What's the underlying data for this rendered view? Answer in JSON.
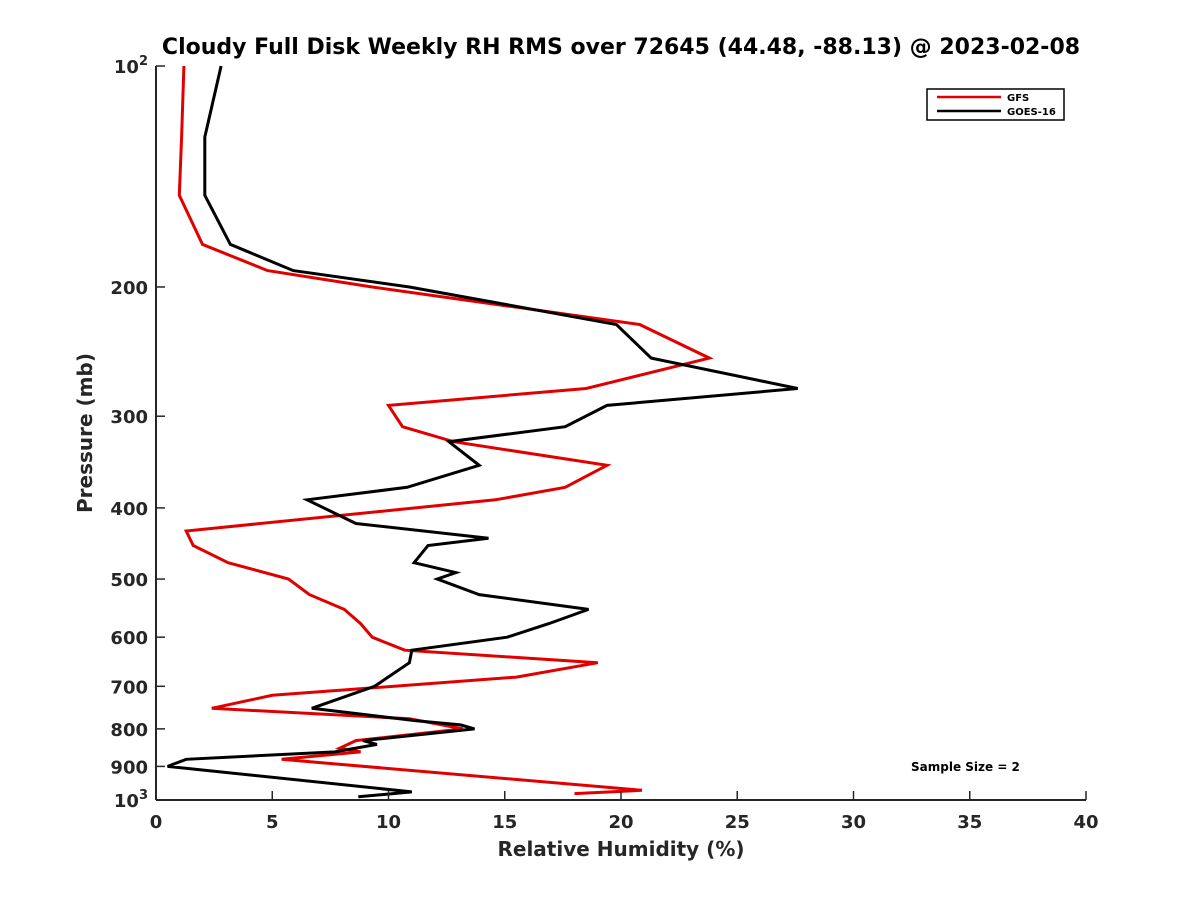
{
  "chart_data": {
    "type": "line",
    "title": "Cloudy Full Disk Weekly RH RMS over 72645 (44.48, -88.13) @ 2023-02-08",
    "xlabel": "Relative Humidity (%)",
    "ylabel": "Pressure (mb)",
    "xlim": [
      0,
      40
    ],
    "ylim": [
      100,
      1000
    ],
    "yscale": "log",
    "y_reversed": true,
    "xticks": [
      {
        "value": 0,
        "label": "0"
      },
      {
        "value": 5,
        "label": "5"
      },
      {
        "value": 10,
        "label": "10"
      },
      {
        "value": 15,
        "label": "15"
      },
      {
        "value": 20,
        "label": "20"
      },
      {
        "value": 25,
        "label": "25"
      },
      {
        "value": 30,
        "label": "30"
      },
      {
        "value": 35,
        "label": "35"
      },
      {
        "value": 40,
        "label": "40"
      }
    ],
    "yticks": [
      {
        "value": 100,
        "base": "10",
        "exp": "2"
      },
      {
        "value": 200,
        "base": "200"
      },
      {
        "value": 300,
        "base": "300"
      },
      {
        "value": 400,
        "base": "400"
      },
      {
        "value": 500,
        "base": "500"
      },
      {
        "value": 600,
        "base": "600"
      },
      {
        "value": 700,
        "base": "700"
      },
      {
        "value": 800,
        "base": "800"
      },
      {
        "value": 900,
        "base": "900"
      },
      {
        "value": 1000,
        "base": "10",
        "exp": "3"
      }
    ],
    "grid": false,
    "legend_position": "top-right",
    "annotation": "Sample Size = 2",
    "series": [
      {
        "name": "GFS",
        "color": "#e00000",
        "points": [
          [
            1.2,
            100
          ],
          [
            1.1,
            125
          ],
          [
            1.0,
            150
          ],
          [
            2.0,
            175
          ],
          [
            4.8,
            190
          ],
          [
            9.3,
            200
          ],
          [
            20.8,
            225
          ],
          [
            23.8,
            250
          ],
          [
            18.5,
            275
          ],
          [
            10.0,
            290
          ],
          [
            10.6,
            310
          ],
          [
            12.8,
            325
          ],
          [
            19.4,
            350
          ],
          [
            17.6,
            375
          ],
          [
            14.6,
            390
          ],
          [
            1.3,
            430
          ],
          [
            1.6,
            450
          ],
          [
            3.1,
            475
          ],
          [
            5.7,
            500
          ],
          [
            6.6,
            525
          ],
          [
            8.1,
            550
          ],
          [
            8.8,
            575
          ],
          [
            9.3,
            600
          ],
          [
            10.7,
            625
          ],
          [
            19.0,
            650
          ],
          [
            15.5,
            680
          ],
          [
            5.0,
            720
          ],
          [
            2.4,
            750
          ],
          [
            10.9,
            775
          ],
          [
            13.2,
            800
          ],
          [
            8.6,
            830
          ],
          [
            7.9,
            850
          ],
          [
            8.8,
            860
          ],
          [
            5.4,
            880
          ],
          [
            20.9,
            970
          ],
          [
            18.0,
            980
          ]
        ]
      },
      {
        "name": "GOES-16",
        "color": "#000000",
        "points": [
          [
            2.8,
            100
          ],
          [
            2.1,
            125
          ],
          [
            2.1,
            150
          ],
          [
            3.2,
            175
          ],
          [
            5.9,
            190
          ],
          [
            10.9,
            200
          ],
          [
            19.8,
            225
          ],
          [
            21.3,
            250
          ],
          [
            27.6,
            275
          ],
          [
            19.4,
            290
          ],
          [
            17.6,
            310
          ],
          [
            12.6,
            325
          ],
          [
            13.9,
            350
          ],
          [
            10.8,
            375
          ],
          [
            6.5,
            390
          ],
          [
            8.6,
            420
          ],
          [
            14.3,
            440
          ],
          [
            11.7,
            450
          ],
          [
            11.1,
            475
          ],
          [
            12.9,
            490
          ],
          [
            12.1,
            500
          ],
          [
            13.9,
            525
          ],
          [
            18.6,
            550
          ],
          [
            16.9,
            575
          ],
          [
            15.1,
            600
          ],
          [
            11.0,
            625
          ],
          [
            10.9,
            650
          ],
          [
            9.4,
            700
          ],
          [
            6.7,
            750
          ],
          [
            11.2,
            780
          ],
          [
            13.1,
            790
          ],
          [
            13.7,
            800
          ],
          [
            8.9,
            830
          ],
          [
            9.5,
            840
          ],
          [
            7.7,
            860
          ],
          [
            1.3,
            880
          ],
          [
            0.5,
            900
          ],
          [
            11.0,
            975
          ],
          [
            8.7,
            990
          ]
        ]
      }
    ]
  }
}
